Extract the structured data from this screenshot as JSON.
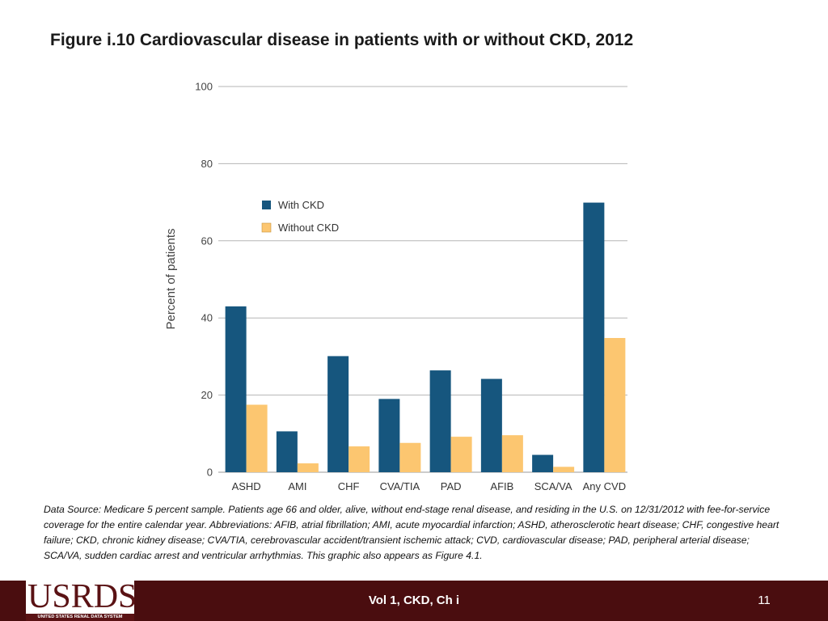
{
  "slide": {
    "title": "Figure i.10  Cardiovascular disease in patients with or without CKD, 2012",
    "caption": "Data Source: Medicare 5 percent sample. Patients age 66 and older, alive, without end-stage renal disease, and residing in the U.S. on 12/31/2012 with fee-for-service coverage for the entire calendar year. Abbreviations: AFIB, atrial fibrillation; AMI, acute myocardial infarction; ASHD, atherosclerotic heart disease; CHF, congestive heart failure; CKD, chronic kidney disease; CVA/TIA, cerebrovascular accident/transient ischemic attack; CVD, cardiovascular disease; PAD, peripheral arterial disease; SCA/VA, sudden cardiac arrest and ventricular arrhythmias. This graphic also appears as Figure 4.1."
  },
  "chart_data": {
    "type": "bar",
    "title": "",
    "xlabel": "",
    "ylabel": "Percent of patients",
    "ylim": [
      0,
      100
    ],
    "yticks": [
      0,
      20,
      40,
      60,
      80,
      100
    ],
    "grid": true,
    "legend_position": "top-left",
    "categories": [
      "ASHD",
      "AMI",
      "CHF",
      "CVA/TIA",
      "PAD",
      "AFIB",
      "SCA/VA",
      "Any CVD"
    ],
    "series": [
      {
        "name": "With CKD",
        "color": "#16567e",
        "values": [
          43.0,
          10.6,
          30.1,
          19.0,
          26.4,
          24.2,
          4.5,
          69.9
        ]
      },
      {
        "name": "Without CKD",
        "color": "#fcc670",
        "values": [
          17.5,
          2.3,
          6.7,
          7.6,
          9.2,
          9.6,
          1.4,
          34.8
        ]
      }
    ]
  },
  "footer": {
    "logo_word": "USRDS",
    "logo_subtitle": "UNITED STATES RENAL DATA SYSTEM",
    "center_text": "Vol 1, CKD, Ch i",
    "page_number": "11"
  }
}
